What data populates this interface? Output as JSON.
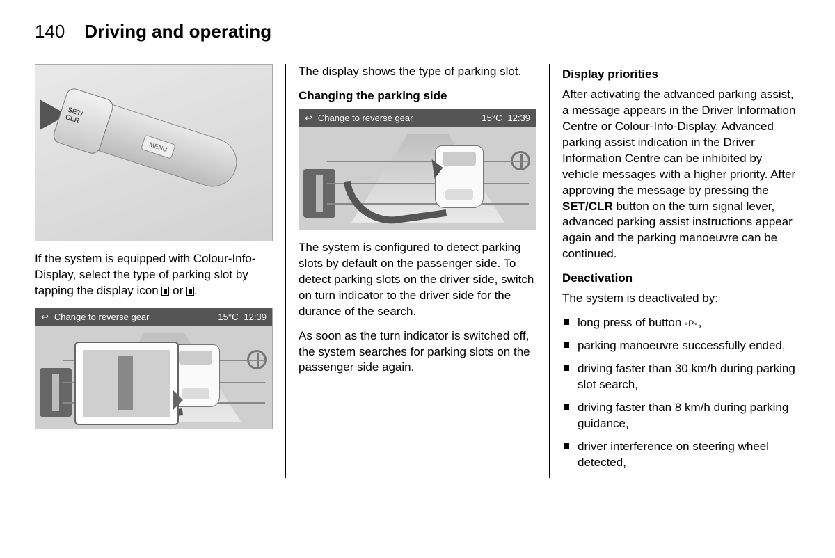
{
  "page": {
    "number": "140",
    "chapter": "Driving and operating"
  },
  "display_header": {
    "back_icon": "↩",
    "title": "Change to reverse gear",
    "temp": "15°C",
    "time": "12:39"
  },
  "col1": {
    "p1_a": "If the system is equipped with Colour-Info-Display, select the type of parking slot by tapping the display icon ",
    "p1_b": " or ",
    "p1_c": "."
  },
  "col2": {
    "p1": "The display shows the type of parking slot.",
    "h1": "Changing the parking side",
    "p2": "The system is configured to detect parking slots by default on the passenger side. To detect parking slots on the driver side, switch on turn indicator to the driver side for the durance of the search.",
    "p3": "As soon as the turn indicator is switched off, the system searches for parking slots on the passenger side again."
  },
  "col3": {
    "h1": "Display priorities",
    "p1_a": "After activating the advanced parking assist, a message appears in the Driver Information Centre or Colour-Info-Display. Advanced parking assist indication in the Driver Information Centre can be inhibited by vehicle messages with a higher priority. After approving the message by pressing the ",
    "p1_bold": "SET/CLR",
    "p1_b": " button on the turn signal lever, advanced parking assist instructions appear again and the parking manoeuvre can be continued.",
    "h2": "Deactivation",
    "p2": "The system is deactivated by:",
    "li1_a": "long press of button ",
    "li1_sym": "▫P▫",
    "li1_b": ",",
    "li2": "parking manoeuvre successfully ended,",
    "li3": "driving faster than 30 km/h during parking slot search,",
    "li4": "driving faster than 8 km/h during parking guidance,",
    "li5": "driver interference on steering wheel detected,"
  }
}
